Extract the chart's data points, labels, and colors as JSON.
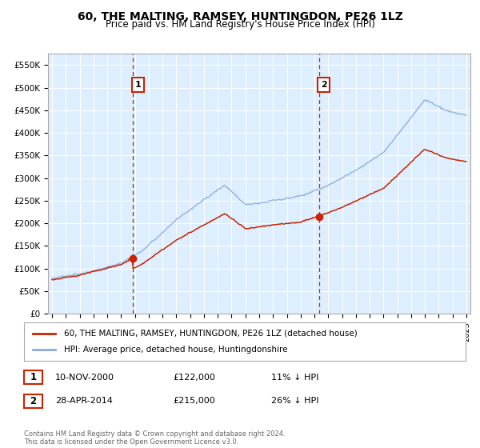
{
  "title": "60, THE MALTING, RAMSEY, HUNTINGDON, PE26 1LZ",
  "subtitle": "Price paid vs. HM Land Registry's House Price Index (HPI)",
  "bg_color": "#ddeeff",
  "grid_color": "#ffffff",
  "ylim": [
    0,
    575000
  ],
  "yticks": [
    0,
    50000,
    100000,
    150000,
    200000,
    250000,
    300000,
    350000,
    400000,
    450000,
    500000,
    550000
  ],
  "xlim_start": 1994.7,
  "xlim_end": 2025.3,
  "sale1_x": 2000.86,
  "sale1_y": 122000,
  "sale1_label": "1",
  "sale2_x": 2014.32,
  "sale2_y": 215000,
  "sale2_label": "2",
  "red_line_color": "#cc2200",
  "blue_line_color": "#88aadd",
  "dashed_line_color": "#cc2200",
  "dot_color": "#cc2200",
  "annotation_box_color": "#cc2200",
  "footer_text": "Contains HM Land Registry data © Crown copyright and database right 2024.\nThis data is licensed under the Open Government Licence v3.0.",
  "legend_entry1": "60, THE MALTING, RAMSEY, HUNTINGDON, PE26 1LZ (detached house)",
  "legend_entry2": "HPI: Average price, detached house, Huntingdonshire",
  "table_row1": [
    "1",
    "10-NOV-2000",
    "£122,000",
    "11% ↓ HPI"
  ],
  "table_row2": [
    "2",
    "28-APR-2014",
    "£215,000",
    "26% ↓ HPI"
  ]
}
